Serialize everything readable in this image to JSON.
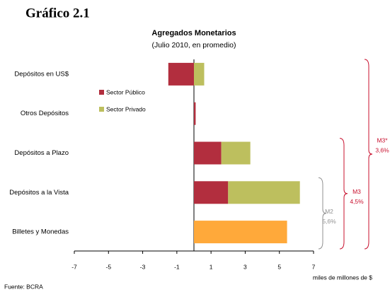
{
  "chart_data": {
    "type": "hbar_stacked",
    "header": "Gráfico 2.1",
    "title": "Agregados Monetarios",
    "subtitle": "(Julio 2010, en promedio)",
    "categories": [
      "Depósitos en US$",
      "Otros Depósitos",
      "Depósitos a Plazo",
      "Depósitos a la Vista",
      "Billetes y Monedas"
    ],
    "series": [
      {
        "name": "Sector Público",
        "color": "#b22e3e",
        "values": [
          -1.5,
          0.1,
          1.6,
          2.0,
          null
        ]
      },
      {
        "name": "Sector Privado",
        "color": "#bdbf5e",
        "values": [
          0.6,
          0,
          1.7,
          4.2,
          null
        ]
      },
      {
        "color": "#ffa93a",
        "values": [
          null,
          null,
          null,
          null,
          5.45
        ]
      }
    ],
    "xlim": [
      -7,
      7
    ],
    "xticks": [
      -7,
      -5,
      -3,
      -1,
      1,
      3,
      5,
      7
    ],
    "xlabel": "miles de millones de $",
    "annotations": [
      {
        "label": "M2",
        "value": "5,6%",
        "color": "#909090"
      },
      {
        "label": "M3",
        "value": "4,5%",
        "color": "#c8102e"
      },
      {
        "label": "M3*",
        "value": "3,6%",
        "color": "#c8102e"
      }
    ],
    "source": "Fuente: BCRA"
  }
}
